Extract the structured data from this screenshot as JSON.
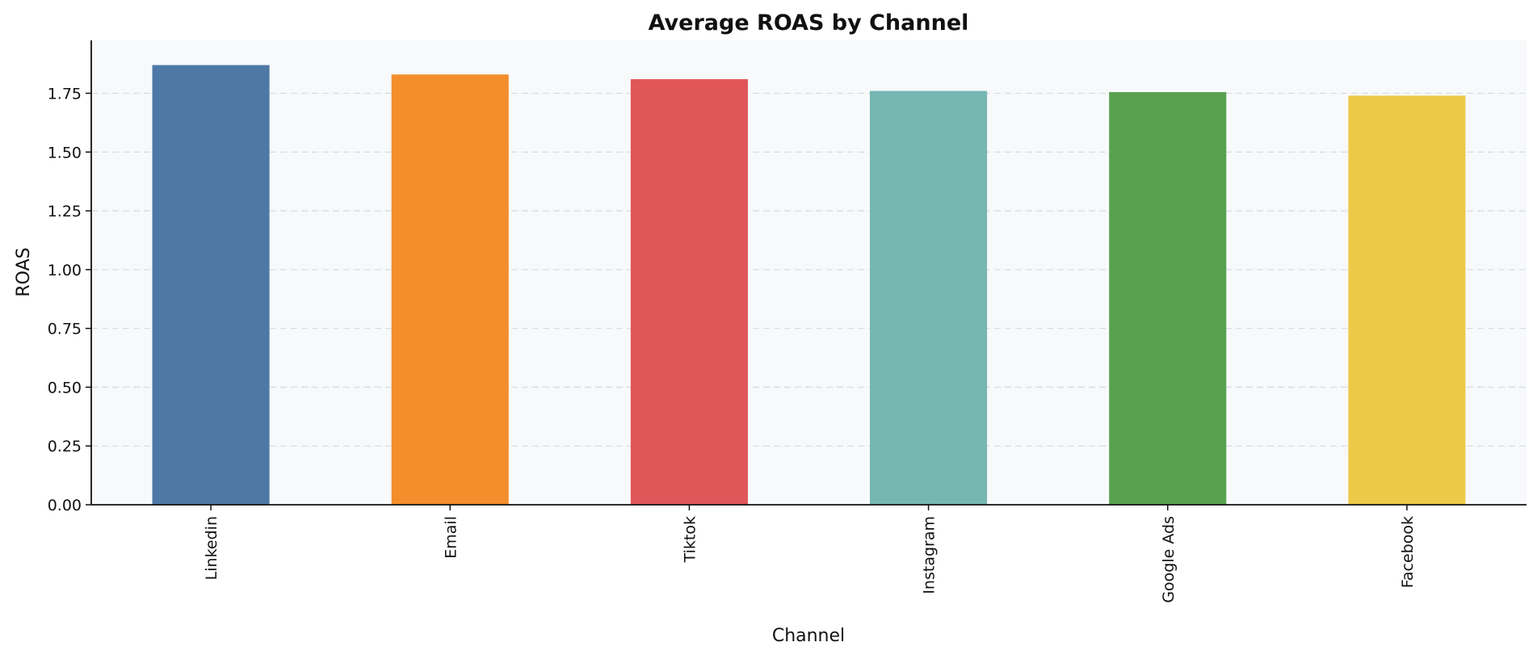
{
  "chart_data": {
    "type": "bar",
    "title": "Average ROAS by Channel",
    "xlabel": "Channel",
    "ylabel": "ROAS",
    "categories": [
      "Linkedin",
      "Email",
      "Tiktok",
      "Instagram",
      "Google Ads",
      "Facebook"
    ],
    "values": [
      1.87,
      1.83,
      1.81,
      1.76,
      1.755,
      1.74
    ],
    "colors": [
      "#4e79a7",
      "#f28e2b",
      "#e15759",
      "#76b7b2",
      "#59a14f",
      "#edc948"
    ],
    "ylim": [
      0,
      1.975
    ],
    "yticks": [
      "0.00",
      "0.25",
      "0.50",
      "0.75",
      "1.00",
      "1.25",
      "1.50",
      "1.75"
    ],
    "grid": "horizontal-dashed",
    "plot_background": "#f8f9fb",
    "legend": "none"
  }
}
